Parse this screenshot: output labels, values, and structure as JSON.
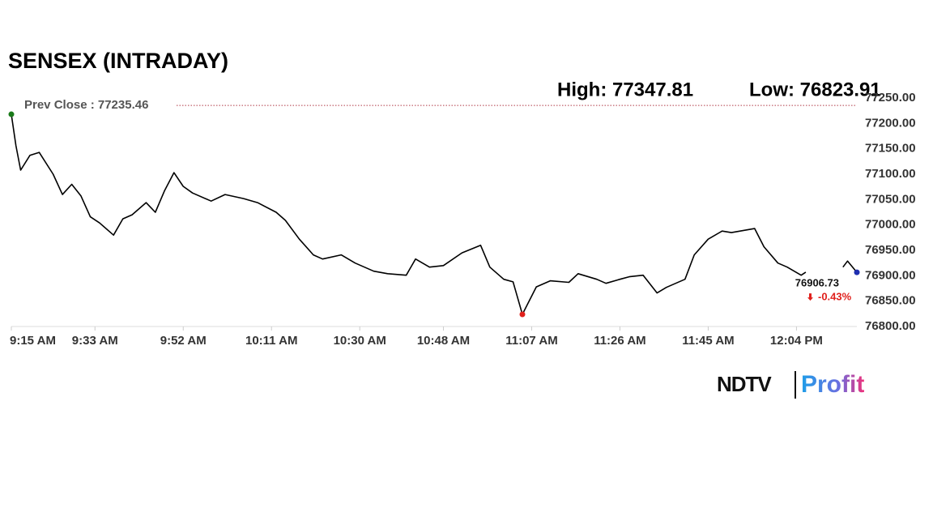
{
  "chart_data": {
    "type": "line",
    "title": "SENSEX (INTRADAY)",
    "high_label": "High: 77347.81",
    "low_label": "Low: 76823.91",
    "reference_line": {
      "label": "Prev Close : 77235.46",
      "value": 77235.46,
      "color": "#b03a48"
    },
    "last_value_label": "76906.73",
    "change_label": "-0.43%",
    "change_color": "#e0201c",
    "x": [
      555,
      556,
      557,
      559,
      561,
      564,
      566,
      568,
      570,
      572,
      574,
      577,
      579,
      581,
      584,
      586,
      588,
      590,
      592,
      594,
      598,
      601,
      605,
      608,
      612,
      614,
      617,
      620,
      622,
      626,
      629,
      633,
      636,
      640,
      642,
      645,
      648,
      652,
      656,
      658,
      661,
      663,
      665,
      668,
      671,
      675,
      677,
      681,
      683,
      686,
      688,
      691,
      694,
      696,
      700,
      702,
      705,
      708,
      710,
      715,
      717,
      720,
      722,
      725,
      726,
      730,
      734,
      735,
      737
    ],
    "series": [
      {
        "name": "SENSEX",
        "color": "#000000",
        "values": [
          77218,
          77156,
          77108,
          77137,
          77143,
          77100,
          77060,
          77080,
          77057,
          77016,
          77004,
          76980,
          77012,
          77020,
          77044,
          77025,
          77068,
          77103,
          77076,
          77063,
          77047,
          77060,
          77052,
          77044,
          77025,
          77009,
          76972,
          76941,
          76933,
          76941,
          76925,
          76909,
          76904,
          76901,
          76933,
          76917,
          76920,
          76945,
          76960,
          76917,
          76893,
          76888,
          76823.91,
          76878,
          76890,
          76887,
          76904,
          76893,
          76885,
          76893,
          76898,
          76901,
          76866,
          76877,
          76893,
          76941,
          76972,
          76988,
          76985,
          76993,
          76957,
          76925,
          76917,
          76901,
          76907,
          null,
          76917,
          76929,
          76906.73
        ]
      }
    ],
    "start_marker_color": "#1a7a1a",
    "low_marker_color": "#e0201c",
    "end_marker_color": "#1f2fb0",
    "xlim": [
      555,
      737
    ],
    "xticks": [
      {
        "value": 555,
        "label": "9:15 AM"
      },
      {
        "value": 573,
        "label": "9:33 AM"
      },
      {
        "value": 592,
        "label": "9:52 AM"
      },
      {
        "value": 611,
        "label": "10:11 AM"
      },
      {
        "value": 630,
        "label": "10:30 AM"
      },
      {
        "value": 648,
        "label": "10:48 AM"
      },
      {
        "value": 667,
        "label": "11:07 AM"
      },
      {
        "value": 686,
        "label": "11:26 AM"
      },
      {
        "value": 705,
        "label": "11:45 AM"
      },
      {
        "value": 724,
        "label": "12:04 PM"
      }
    ],
    "ylim": [
      76800,
      77250
    ],
    "yticks": [
      {
        "value": 76800,
        "label": "76800.00"
      },
      {
        "value": 76850,
        "label": "76850.00"
      },
      {
        "value": 76900,
        "label": "76900.00"
      },
      {
        "value": 76950,
        "label": "76950.00"
      },
      {
        "value": 77000,
        "label": "77000.00"
      },
      {
        "value": 77050,
        "label": "77050.00"
      },
      {
        "value": 77100,
        "label": "77100.00"
      },
      {
        "value": 77150,
        "label": "77150.00"
      },
      {
        "value": 77200,
        "label": "77200.00"
      },
      {
        "value": 77250,
        "label": "77250.00"
      }
    ],
    "grid": false
  },
  "branding": {
    "left": "NDTV",
    "right": "Profit"
  }
}
